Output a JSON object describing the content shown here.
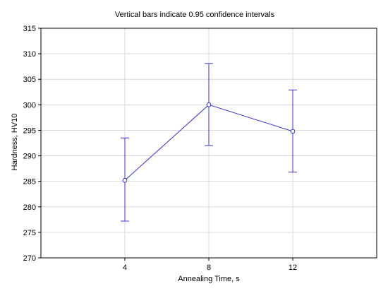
{
  "chart_data": {
    "type": "line",
    "title": "Vertical bars indicate 0.95 confidence intervals",
    "xlabel": "Annealing Time, s",
    "ylabel": "Hardness, HV10",
    "x_categories": [
      "4",
      "8",
      "12"
    ],
    "xlim": [
      0,
      16
    ],
    "ylim": [
      270,
      315
    ],
    "y_ticks": [
      270,
      275,
      280,
      285,
      290,
      295,
      300,
      305,
      310,
      315
    ],
    "grid": true,
    "series": [
      {
        "x": [
          4,
          8,
          12
        ],
        "y": [
          285.2,
          300.0,
          294.8
        ],
        "ci_lower": [
          277.2,
          292.0,
          286.8
        ],
        "ci_upper": [
          293.5,
          308.1,
          302.9
        ],
        "color": "#3333cc"
      }
    ]
  }
}
